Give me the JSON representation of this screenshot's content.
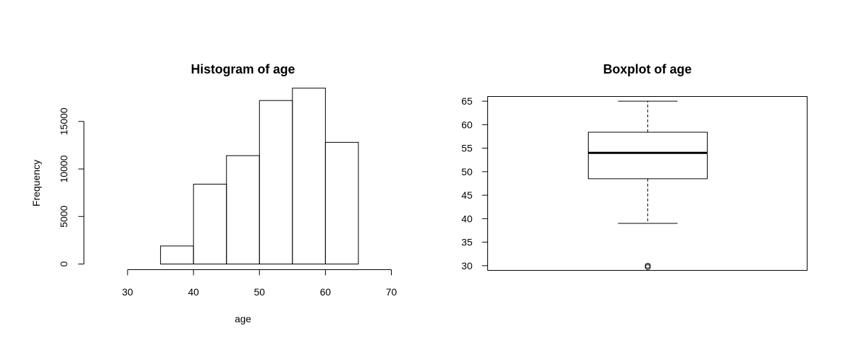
{
  "chart_data": [
    {
      "type": "bar",
      "title": "Histogram of age",
      "xlabel": "age",
      "ylabel": "Frequency",
      "xlim": [
        25,
        70
      ],
      "ylim": [
        0,
        19000
      ],
      "x_ticks": [
        30,
        40,
        50,
        60,
        70
      ],
      "y_ticks": [
        0,
        5000,
        10000,
        15000
      ],
      "bins": [
        {
          "from": 25,
          "to": 30,
          "count": 0
        },
        {
          "from": 30,
          "to": 35,
          "count": 0
        },
        {
          "from": 35,
          "to": 40,
          "count": 1900
        },
        {
          "from": 40,
          "to": 45,
          "count": 8400
        },
        {
          "from": 45,
          "to": 50,
          "count": 11400
        },
        {
          "from": 50,
          "to": 55,
          "count": 17200
        },
        {
          "from": 55,
          "to": 60,
          "count": 18500
        },
        {
          "from": 60,
          "to": 65,
          "count": 12800
        }
      ]
    },
    {
      "type": "boxplot",
      "title": "Boxplot of age",
      "ylim": [
        29,
        66
      ],
      "y_ticks": [
        30,
        35,
        40,
        45,
        50,
        55,
        60,
        65
      ],
      "stats": {
        "lower_whisker": 39,
        "q1": 48.5,
        "median": 54,
        "q3": 58.4,
        "upper_whisker": 65
      },
      "outliers": [
        29.7,
        30
      ]
    }
  ]
}
